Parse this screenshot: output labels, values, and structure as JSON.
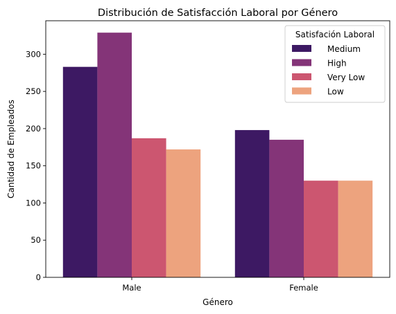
{
  "chart_data": {
    "type": "bar",
    "title": "Distribución de Satisfacción Laboral por Género",
    "xlabel": "Género",
    "ylabel": "Cantidad de Empleados",
    "categories": [
      "Male",
      "Female"
    ],
    "ylim": [
      0,
      345
    ],
    "yticks": [
      0,
      50,
      100,
      150,
      200,
      250,
      300
    ],
    "grid": false,
    "legend": {
      "title": "Satisfación Laboral",
      "placement": "top-right"
    },
    "series": [
      {
        "name": "Medium",
        "color": "#3d1963",
        "values": [
          283,
          198
        ]
      },
      {
        "name": "High",
        "color": "#843478",
        "values": [
          329,
          185
        ]
      },
      {
        "name": "Very Low",
        "color": "#cc5670",
        "values": [
          187,
          130
        ]
      },
      {
        "name": "Low",
        "color": "#eda37e",
        "values": [
          172,
          130
        ]
      }
    ]
  }
}
